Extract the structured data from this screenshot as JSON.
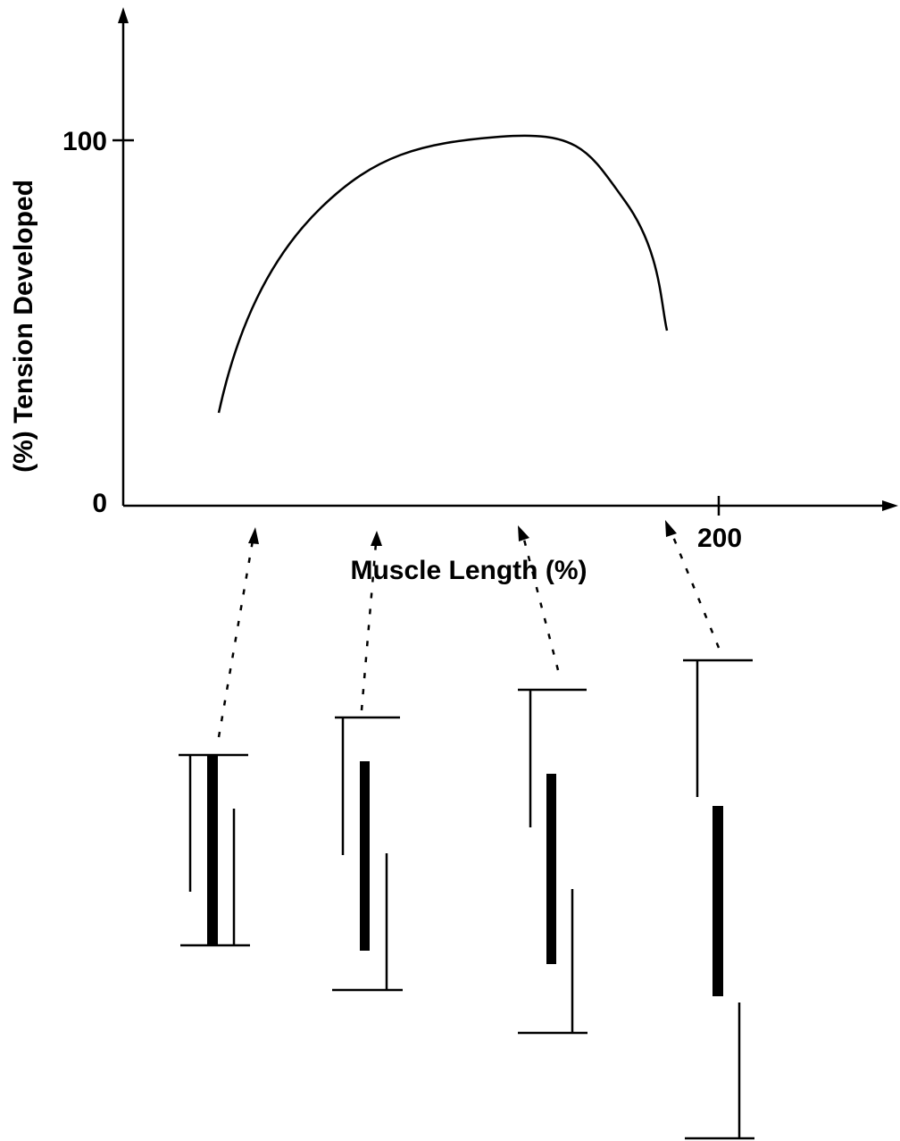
{
  "axes": {
    "y_label": "(%) Tension Developed",
    "x_label": "Muscle Length (%)",
    "y_ticks": [
      "0",
      "100"
    ],
    "x_ticks": [
      "200"
    ]
  }
}
